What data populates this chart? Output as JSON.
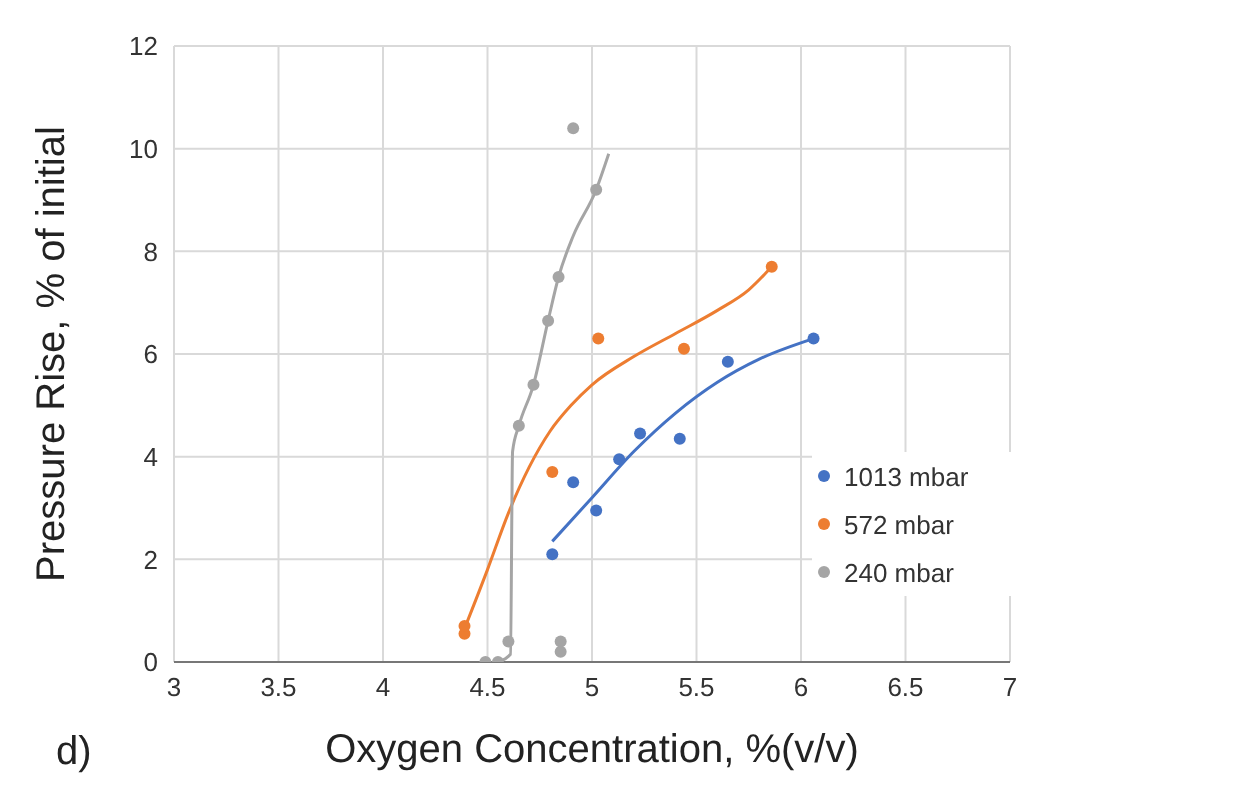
{
  "chart_data": {
    "type": "scatter",
    "xlabel": "Oxygen Concentration, %(v/v)",
    "ylabel": "Pressure Rise, % of initial",
    "annotations": [
      "d)"
    ],
    "xlim": [
      3,
      7
    ],
    "xticks": [
      3,
      3.5,
      4,
      4.5,
      5,
      5.5,
      6,
      6.5,
      7
    ],
    "ylim": [
      0,
      12
    ],
    "yticks": [
      0,
      2,
      4,
      6,
      8,
      10,
      12
    ],
    "grid": true,
    "legend": "right",
    "marker": "circle",
    "series": [
      {
        "name": "1013 mbar",
        "color": "#4472c4",
        "x": [
          4.81,
          4.91,
          5.02,
          5.13,
          5.23,
          5.42,
          5.65,
          6.06
        ],
        "values": [
          2.1,
          3.5,
          2.95,
          3.95,
          4.45,
          4.35,
          5.85,
          6.3
        ]
      },
      {
        "name": "572 mbar",
        "color": "#ed7d31",
        "x": [
          4.39,
          4.39,
          4.81,
          5.03,
          5.44,
          5.86
        ],
        "values": [
          0.55,
          0.7,
          3.7,
          6.3,
          6.1,
          7.7
        ]
      },
      {
        "name": "240 mbar",
        "color": "#a5a5a5",
        "x": [
          4.49,
          4.55,
          4.6,
          4.65,
          4.72,
          4.79,
          4.84,
          4.91,
          5.02,
          4.85,
          4.85
        ],
        "values": [
          0,
          0,
          0.4,
          4.6,
          5.4,
          6.65,
          7.5,
          10.4,
          9.2,
          0.4,
          0.2
        ]
      },
      {
        "type": "line",
        "marker": "none",
        "color": "#4472c4",
        "x": [
          4.81,
          5.0,
          5.2,
          5.4,
          5.6,
          5.8,
          6.06
        ],
        "values": [
          2.35,
          3.2,
          4.1,
          4.85,
          5.45,
          5.9,
          6.3
        ]
      },
      {
        "type": "line",
        "marker": "none",
        "color": "#ed7d31",
        "x": [
          4.39,
          4.5,
          4.6,
          4.7,
          4.8,
          4.9,
          5.0,
          5.2,
          5.4,
          5.6,
          5.75,
          5.86
        ],
        "values": [
          0.65,
          1.8,
          2.9,
          3.8,
          4.5,
          5.0,
          5.4,
          5.95,
          6.4,
          6.85,
          7.25,
          7.7
        ]
      },
      {
        "type": "line",
        "marker": "none",
        "color": "#a5a5a5",
        "x": [
          4.55,
          4.61,
          4.62,
          4.65,
          4.72,
          4.79,
          4.84,
          4.91,
          5.02,
          5.08
        ],
        "values": [
          0,
          0.15,
          4.1,
          4.6,
          5.4,
          6.65,
          7.5,
          8.3,
          9.2,
          9.9
        ]
      }
    ]
  }
}
